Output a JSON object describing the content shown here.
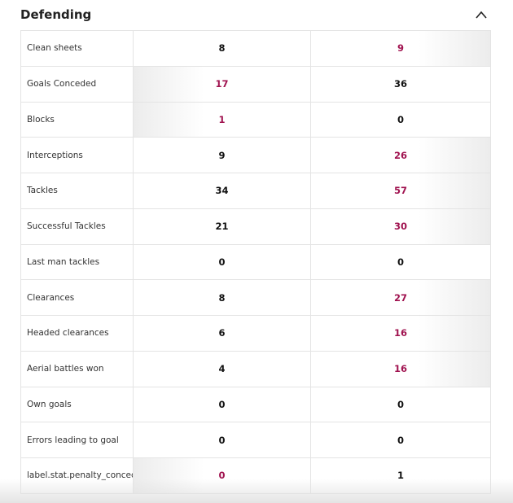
{
  "header": {
    "title": "Defending"
  },
  "table": {
    "rows": [
      {
        "label": "Clean sheets",
        "left": 8,
        "right": 9,
        "highlight": "right"
      },
      {
        "label": "Goals Conceded",
        "left": 17,
        "right": 36,
        "highlight": "left"
      },
      {
        "label": "Blocks",
        "left": 1,
        "right": 0,
        "highlight": "left"
      },
      {
        "label": "Interceptions",
        "left": 9,
        "right": 26,
        "highlight": "right"
      },
      {
        "label": "Tackles",
        "left": 34,
        "right": 57,
        "highlight": "right"
      },
      {
        "label": "Successful Tackles",
        "left": 21,
        "right": 30,
        "highlight": "right"
      },
      {
        "label": "Last man tackles",
        "left": 0,
        "right": 0,
        "highlight": null
      },
      {
        "label": "Clearances",
        "left": 8,
        "right": 27,
        "highlight": "right"
      },
      {
        "label": "Headed clearances",
        "left": 6,
        "right": 16,
        "highlight": "right"
      },
      {
        "label": "Aerial battles won",
        "left": 4,
        "right": 16,
        "highlight": "right"
      },
      {
        "label": "Own goals",
        "left": 0,
        "right": 0,
        "highlight": null
      },
      {
        "label": "Errors leading to goal",
        "left": 0,
        "right": 0,
        "highlight": null
      },
      {
        "label": "label.stat.penalty_conceded",
        "left": 0,
        "right": 1,
        "highlight": "left"
      }
    ]
  }
}
